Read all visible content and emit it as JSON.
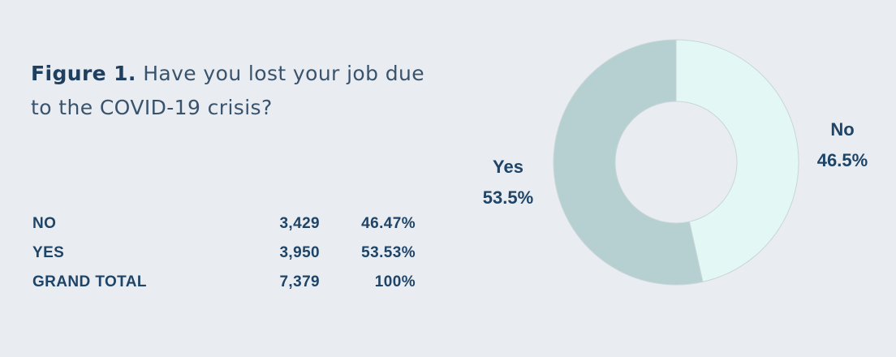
{
  "figure": {
    "label": "Figure 1.",
    "question": "Have you lost your job due to the COVID-19 crisis?"
  },
  "table": {
    "rows": [
      {
        "category": "NO",
        "count": "3,429",
        "percent": "46.47%"
      },
      {
        "category": "YES",
        "count": "3,950",
        "percent": "53.53%"
      },
      {
        "category": "GRAND TOTAL",
        "count": "7,379",
        "percent": "100%"
      }
    ]
  },
  "colors": {
    "no": "#e3f7f5",
    "yes": "#b6d0d2",
    "text": "#1e4468",
    "background": "#e9ecf1"
  },
  "chart_data": {
    "type": "pie",
    "style": "donut",
    "slices": [
      {
        "label": "No",
        "value": 46.5,
        "display": "46.5%"
      },
      {
        "label": "Yes",
        "value": 53.5,
        "display": "53.5%"
      }
    ],
    "start": "12 o'clock",
    "direction": "clockwise"
  }
}
